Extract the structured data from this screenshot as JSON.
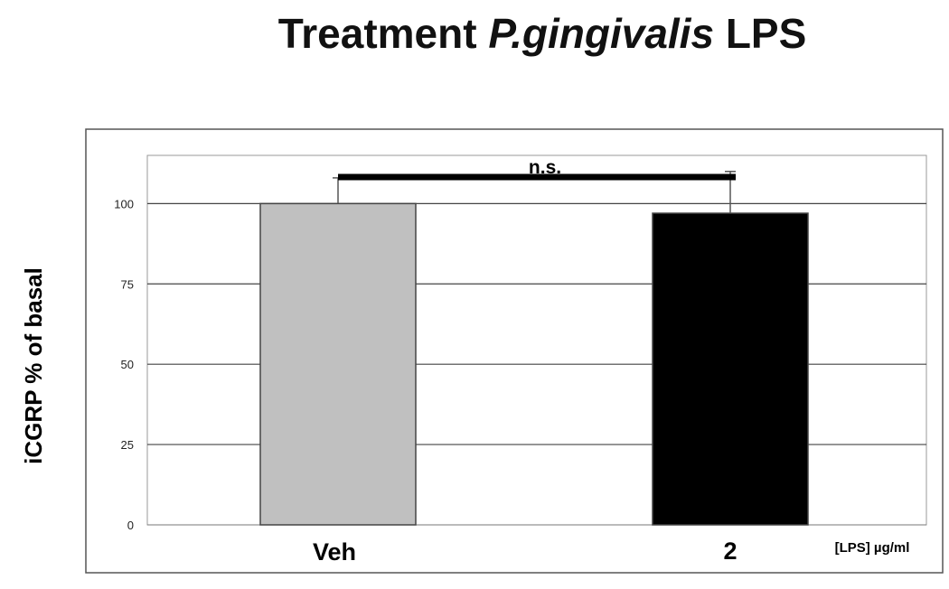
{
  "chart_data": {
    "type": "bar",
    "title_parts": [
      "Treatment ",
      "P.gingivalis",
      " LPS"
    ],
    "ylabel": "iCGRP % of basal",
    "x_unit_label": "[LPS] µg/ml",
    "categories": [
      "Veh",
      "2"
    ],
    "values": [
      100,
      97
    ],
    "error_plus": [
      8,
      13
    ],
    "bar_colors": [
      "#c0c0c0",
      "#000000"
    ],
    "ylim": [
      0,
      115
    ],
    "yticks": [
      0,
      25,
      50,
      75,
      100
    ],
    "grid": true,
    "significance": {
      "label": "n.s.",
      "from": 0,
      "to": 1
    }
  }
}
